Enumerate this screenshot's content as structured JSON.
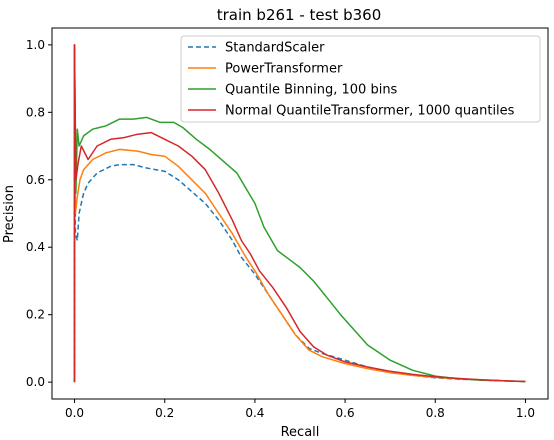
{
  "chart_data": {
    "type": "line",
    "title": "train b261 - test b360",
    "xlabel": "Recall",
    "ylabel": "Precision",
    "xlim": [
      -0.05,
      1.05
    ],
    "ylim": [
      -0.05,
      1.05
    ],
    "xticks": [
      "0.0",
      "0.2",
      "0.4",
      "0.6",
      "0.8",
      "1.0"
    ],
    "yticks": [
      "0.0",
      "0.2",
      "0.4",
      "0.6",
      "0.8",
      "1.0"
    ],
    "grid": false,
    "legend_position": "top-right",
    "series": [
      {
        "name": "StandardScaler",
        "color": "#1f77b4",
        "dash": "dashed",
        "points": [
          [
            0,
            0
          ],
          [
            0,
            1.0
          ],
          [
            0.002,
            0.44
          ],
          [
            0.006,
            0.42
          ],
          [
            0.01,
            0.5
          ],
          [
            0.015,
            0.53
          ],
          [
            0.02,
            0.56
          ],
          [
            0.03,
            0.59
          ],
          [
            0.05,
            0.62
          ],
          [
            0.08,
            0.64
          ],
          [
            0.1,
            0.645
          ],
          [
            0.13,
            0.645
          ],
          [
            0.16,
            0.635
          ],
          [
            0.2,
            0.625
          ],
          [
            0.23,
            0.6
          ],
          [
            0.26,
            0.565
          ],
          [
            0.29,
            0.53
          ],
          [
            0.32,
            0.48
          ],
          [
            0.35,
            0.42
          ],
          [
            0.37,
            0.37
          ],
          [
            0.4,
            0.32
          ],
          [
            0.43,
            0.26
          ],
          [
            0.46,
            0.2
          ],
          [
            0.49,
            0.14
          ],
          [
            0.52,
            0.1
          ],
          [
            0.55,
            0.085
          ],
          [
            0.6,
            0.065
          ],
          [
            0.65,
            0.045
          ],
          [
            0.7,
            0.03
          ],
          [
            0.75,
            0.02
          ],
          [
            0.8,
            0.013
          ],
          [
            0.85,
            0.009
          ],
          [
            0.9,
            0.006
          ],
          [
            0.95,
            0.004
          ],
          [
            1.0,
            0.002
          ]
        ]
      },
      {
        "name": "PowerTransformer",
        "color": "#ff7f0e",
        "dash": "solid",
        "points": [
          [
            0,
            0
          ],
          [
            0,
            1.0
          ],
          [
            0.002,
            0.5
          ],
          [
            0.006,
            0.55
          ],
          [
            0.012,
            0.6
          ],
          [
            0.02,
            0.63
          ],
          [
            0.04,
            0.66
          ],
          [
            0.07,
            0.68
          ],
          [
            0.1,
            0.69
          ],
          [
            0.14,
            0.685
          ],
          [
            0.17,
            0.675
          ],
          [
            0.2,
            0.67
          ],
          [
            0.23,
            0.64
          ],
          [
            0.26,
            0.6
          ],
          [
            0.29,
            0.56
          ],
          [
            0.32,
            0.5
          ],
          [
            0.35,
            0.44
          ],
          [
            0.38,
            0.37
          ],
          [
            0.4,
            0.33
          ],
          [
            0.43,
            0.26
          ],
          [
            0.46,
            0.2
          ],
          [
            0.49,
            0.14
          ],
          [
            0.52,
            0.095
          ],
          [
            0.55,
            0.075
          ],
          [
            0.6,
            0.055
          ],
          [
            0.65,
            0.04
          ],
          [
            0.7,
            0.028
          ],
          [
            0.75,
            0.02
          ],
          [
            0.8,
            0.014
          ],
          [
            0.85,
            0.01
          ],
          [
            0.9,
            0.007
          ],
          [
            0.95,
            0.004
          ],
          [
            1.0,
            0.002
          ]
        ]
      },
      {
        "name": "Quantile Binning, 100 bins",
        "color": "#2ca02c",
        "dash": "solid",
        "points": [
          [
            0,
            0
          ],
          [
            0,
            1.0
          ],
          [
            0.003,
            0.56
          ],
          [
            0.006,
            0.75
          ],
          [
            0.01,
            0.7
          ],
          [
            0.02,
            0.73
          ],
          [
            0.04,
            0.75
          ],
          [
            0.07,
            0.76
          ],
          [
            0.1,
            0.78
          ],
          [
            0.13,
            0.78
          ],
          [
            0.16,
            0.785
          ],
          [
            0.19,
            0.77
          ],
          [
            0.22,
            0.77
          ],
          [
            0.24,
            0.755
          ],
          [
            0.27,
            0.72
          ],
          [
            0.3,
            0.69
          ],
          [
            0.33,
            0.655
          ],
          [
            0.36,
            0.62
          ],
          [
            0.38,
            0.575
          ],
          [
            0.4,
            0.53
          ],
          [
            0.42,
            0.46
          ],
          [
            0.45,
            0.39
          ],
          [
            0.48,
            0.36
          ],
          [
            0.5,
            0.34
          ],
          [
            0.53,
            0.3
          ],
          [
            0.56,
            0.25
          ],
          [
            0.59,
            0.2
          ],
          [
            0.62,
            0.155
          ],
          [
            0.65,
            0.11
          ],
          [
            0.7,
            0.065
          ],
          [
            0.75,
            0.035
          ],
          [
            0.8,
            0.018
          ],
          [
            0.85,
            0.01
          ],
          [
            0.9,
            0.006
          ],
          [
            0.95,
            0.004
          ],
          [
            1.0,
            0.002
          ]
        ]
      },
      {
        "name": "Normal QuantileTransformer, 1000 quantiles",
        "color": "#d62728",
        "dash": "solid",
        "points": [
          [
            0,
            0
          ],
          [
            0,
            1.0
          ],
          [
            0.003,
            0.6
          ],
          [
            0.008,
            0.65
          ],
          [
            0.015,
            0.7
          ],
          [
            0.03,
            0.66
          ],
          [
            0.05,
            0.7
          ],
          [
            0.08,
            0.72
          ],
          [
            0.11,
            0.725
          ],
          [
            0.14,
            0.735
          ],
          [
            0.17,
            0.74
          ],
          [
            0.2,
            0.72
          ],
          [
            0.23,
            0.7
          ],
          [
            0.26,
            0.67
          ],
          [
            0.29,
            0.63
          ],
          [
            0.32,
            0.56
          ],
          [
            0.35,
            0.48
          ],
          [
            0.37,
            0.42
          ],
          [
            0.39,
            0.38
          ],
          [
            0.41,
            0.33
          ],
          [
            0.44,
            0.28
          ],
          [
            0.47,
            0.22
          ],
          [
            0.5,
            0.15
          ],
          [
            0.53,
            0.105
          ],
          [
            0.56,
            0.08
          ],
          [
            0.6,
            0.06
          ],
          [
            0.65,
            0.045
          ],
          [
            0.7,
            0.032
          ],
          [
            0.75,
            0.023
          ],
          [
            0.8,
            0.016
          ],
          [
            0.85,
            0.011
          ],
          [
            0.9,
            0.007
          ],
          [
            0.95,
            0.004
          ],
          [
            1.0,
            0.002
          ]
        ]
      }
    ]
  }
}
